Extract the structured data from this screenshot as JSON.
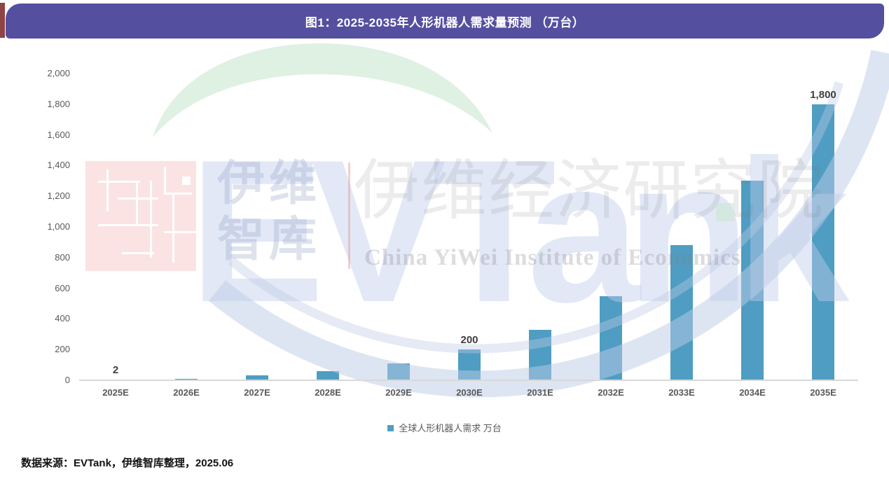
{
  "banner": {
    "title": "图1：2025-2035年人形机器人需求量预测 （万台）"
  },
  "chart_data": {
    "type": "bar",
    "title": "图1：2025-2035年人形机器人需求量预测 （万台）",
    "categories": [
      "2025E",
      "2026E",
      "2027E",
      "2028E",
      "2029E",
      "2030E",
      "2031E",
      "2032E",
      "2033E",
      "2034E",
      "2035E"
    ],
    "values": [
      2,
      10,
      30,
      60,
      110,
      200,
      330,
      550,
      880,
      1300,
      1800
    ],
    "series_name": "全球人形机器人需求 万台",
    "shown_value_labels": {
      "2025E": "2",
      "2030E": "200",
      "2035E": "1,800"
    },
    "ylabel": "",
    "xlabel": "",
    "ylim": [
      0,
      2000
    ],
    "ytick_step": 200,
    "ytick_labels": [
      "0",
      "200",
      "400",
      "600",
      "800",
      "1,000",
      "1,200",
      "1,400",
      "1,600",
      "1,800",
      "2,000"
    ],
    "grid": false,
    "legend_position": "bottom",
    "bar_color": "#4F9DC2"
  },
  "legend": {
    "label": "全球人形机器人需求 万台",
    "marker_color": "#4F9DC2"
  },
  "source_note": "数据来源：EVTank，伊维智库整理，2025.06",
  "watermark": {
    "logo_text": "EVTank",
    "cn_bold": "伊维\n智库",
    "cn_outline": "伊维经济研究院",
    "en_subtitle": "China YiWei Institute of Economics"
  },
  "colors": {
    "banner_bg": "#554FA0",
    "banner_text": "#FFFFFF",
    "bar": "#4F9DC2",
    "axis_text": "#595959",
    "value_label_text": "#3F3F3F",
    "source_text": "#111111"
  }
}
